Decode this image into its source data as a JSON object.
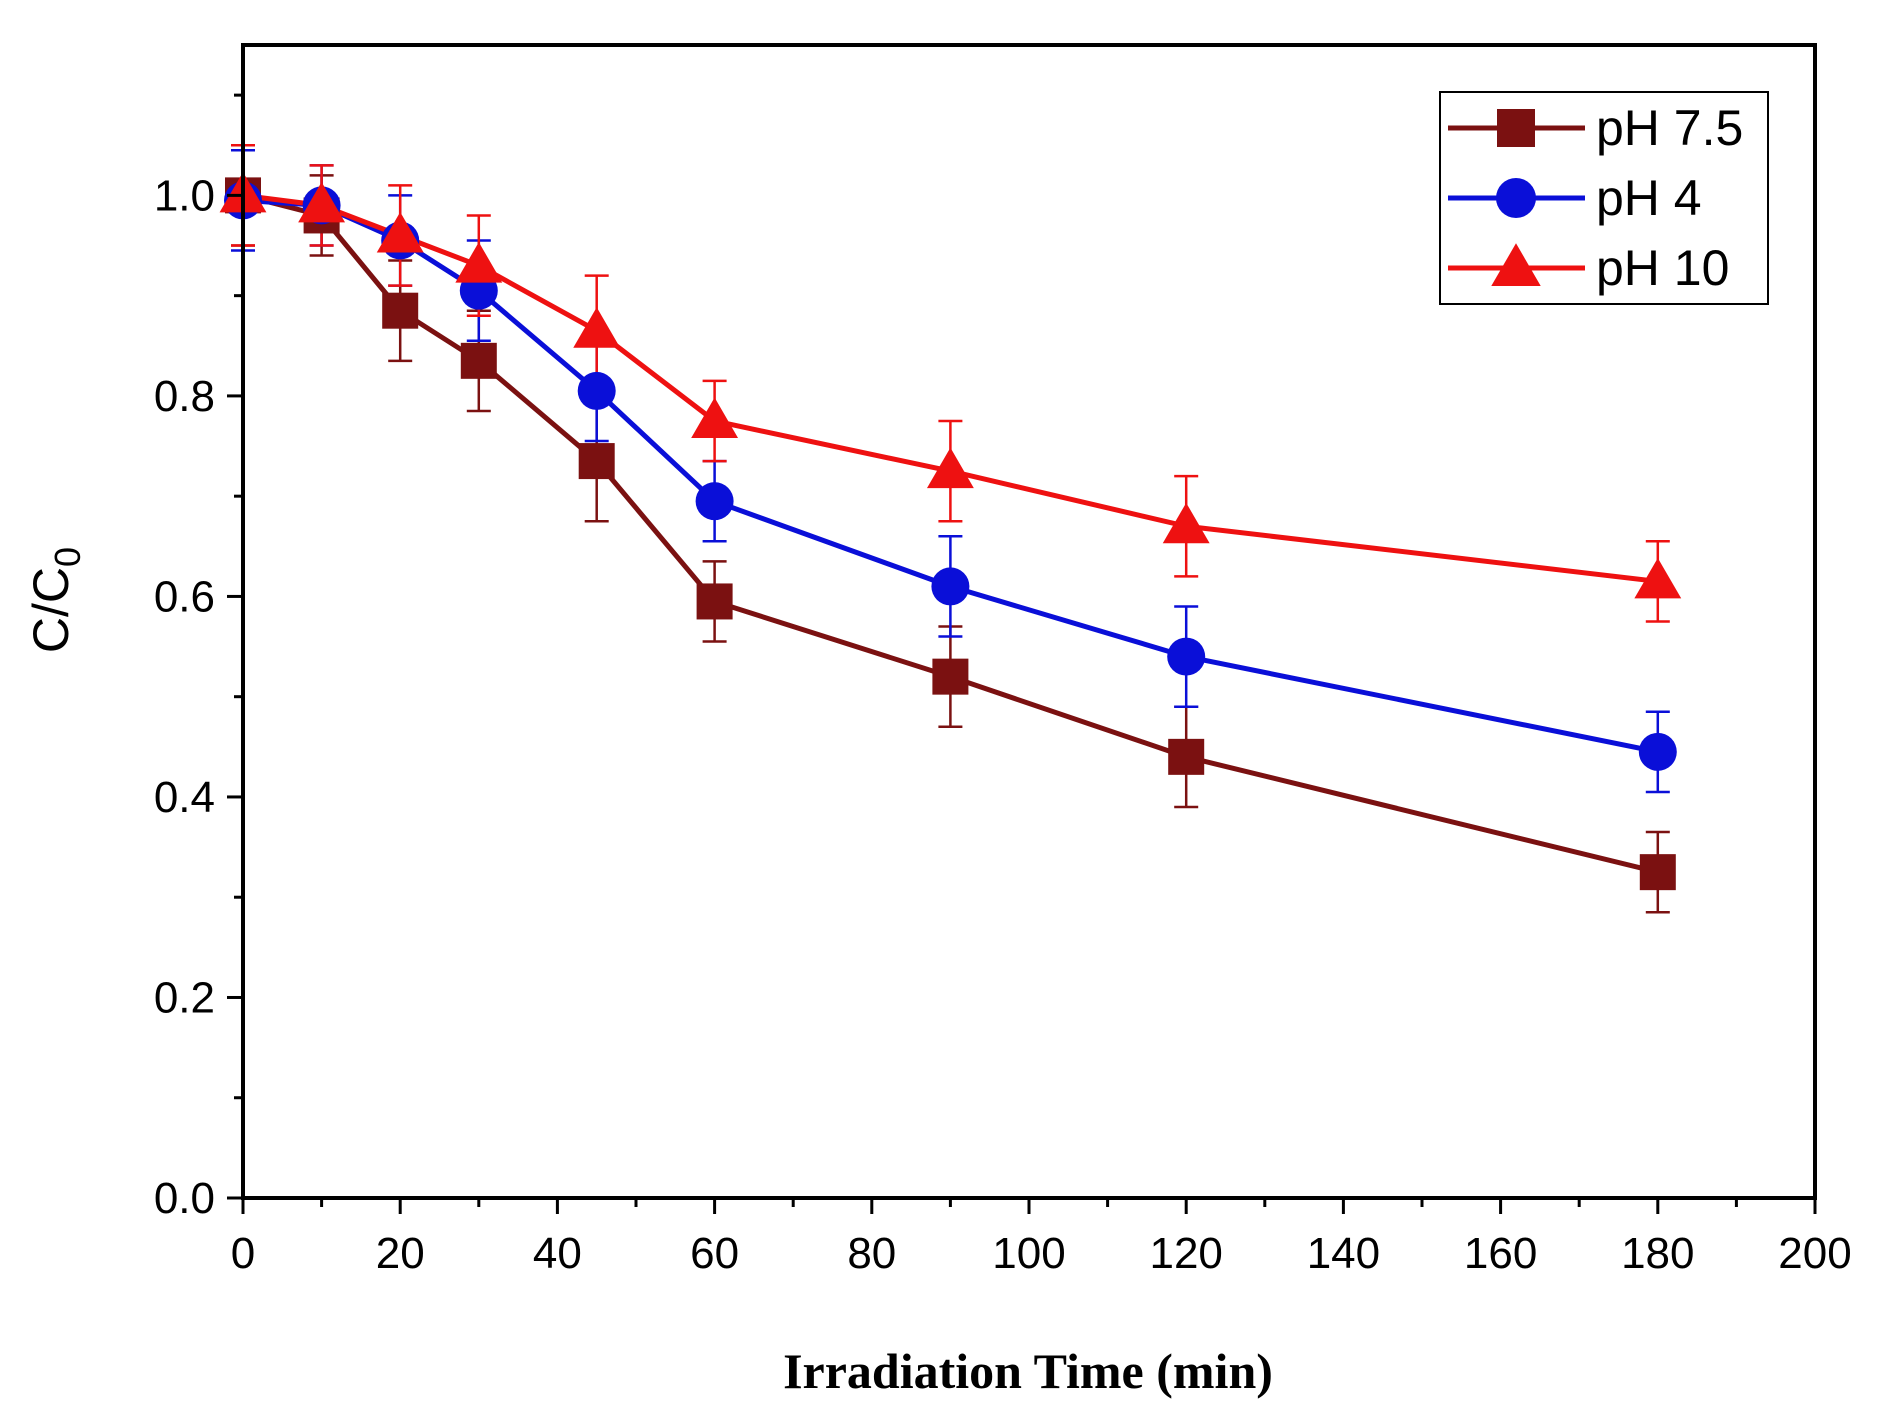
{
  "chart_data": {
    "type": "line",
    "title": "",
    "xlabel": "Irradiation Time (min)",
    "ylabel_main": "C/C",
    "ylabel_sub": "0",
    "xlim": [
      0,
      200
    ],
    "ylim": [
      0,
      1.15
    ],
    "xticks": [
      0,
      20,
      40,
      60,
      80,
      100,
      120,
      140,
      160,
      180,
      200
    ],
    "yticks": [
      0.0,
      0.2,
      0.4,
      0.6,
      0.8,
      1.0
    ],
    "xtick_labels": [
      "0",
      "20",
      "40",
      "60",
      "80",
      "100",
      "120",
      "140",
      "160",
      "180",
      "200"
    ],
    "ytick_labels": [
      "0.0",
      "0.2",
      "0.4",
      "0.6",
      "0.8",
      "1.0"
    ],
    "grid": false,
    "legend_position": "top-right",
    "series": [
      {
        "name": "pH 7.5",
        "color": "#7b1111",
        "marker": "square",
        "x": [
          0,
          10,
          20,
          30,
          45,
          60,
          90,
          120,
          180
        ],
        "y": [
          1.0,
          0.98,
          0.885,
          0.835,
          0.735,
          0.595,
          0.52,
          0.44,
          0.325
        ],
        "err": [
          0.05,
          0.04,
          0.05,
          0.05,
          0.06,
          0.04,
          0.05,
          0.05,
          0.04
        ]
      },
      {
        "name": "pH 4",
        "color": "#0a0fd8",
        "marker": "circle",
        "x": [
          0,
          10,
          20,
          30,
          45,
          60,
          90,
          120,
          180
        ],
        "y": [
          0.995,
          0.99,
          0.955,
          0.905,
          0.805,
          0.695,
          0.61,
          0.54,
          0.445
        ],
        "err": [
          0.05,
          0.04,
          0.045,
          0.05,
          0.05,
          0.04,
          0.05,
          0.05,
          0.04
        ]
      },
      {
        "name": "pH 10",
        "color": "#ee1111",
        "marker": "triangle",
        "x": [
          0,
          10,
          20,
          30,
          45,
          60,
          90,
          120,
          180
        ],
        "y": [
          1.0,
          0.99,
          0.96,
          0.93,
          0.865,
          0.775,
          0.725,
          0.67,
          0.615
        ],
        "err": [
          0.05,
          0.04,
          0.05,
          0.05,
          0.055,
          0.04,
          0.05,
          0.05,
          0.04
        ]
      }
    ]
  }
}
